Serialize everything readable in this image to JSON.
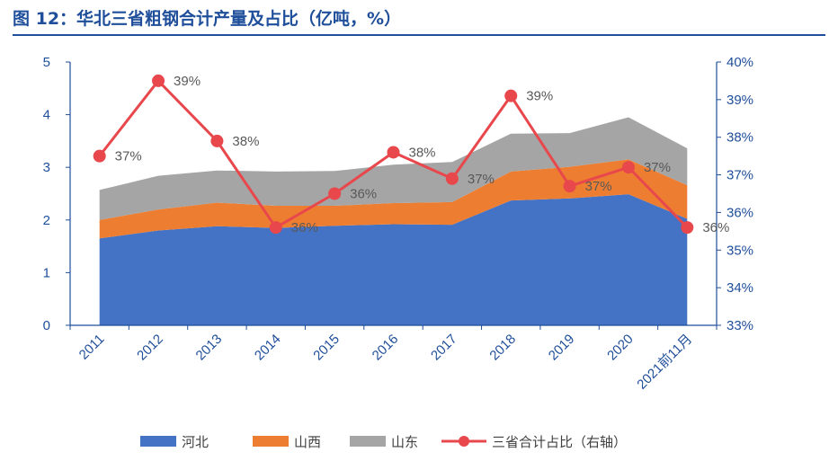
{
  "title": "图 12：华北三省粗钢合计产量及占比（亿吨，%）",
  "chart_data": {
    "type": "area",
    "title": "图 12：华北三省粗钢合计产量及占比（亿吨，%）",
    "categories": [
      "2011",
      "2012",
      "2013",
      "2014",
      "2015",
      "2016",
      "2017",
      "2018",
      "2019",
      "2020",
      "2021前11月"
    ],
    "stacked": true,
    "series": [
      {
        "name": "河北",
        "type": "area",
        "axis": "left",
        "color": "#4472c4",
        "values": [
          1.65,
          1.8,
          1.88,
          1.85,
          1.89,
          1.92,
          1.91,
          2.37,
          2.41,
          2.49,
          2.02
        ]
      },
      {
        "name": "山西",
        "type": "area",
        "axis": "left",
        "color": "#ed7d31",
        "values": [
          0.35,
          0.4,
          0.45,
          0.42,
          0.38,
          0.4,
          0.43,
          0.55,
          0.6,
          0.66,
          0.64
        ]
      },
      {
        "name": "山东",
        "type": "area",
        "axis": "left",
        "color": "#a5a5a5",
        "values": [
          0.57,
          0.64,
          0.61,
          0.65,
          0.66,
          0.73,
          0.76,
          0.72,
          0.64,
          0.8,
          0.7
        ]
      },
      {
        "name": "三省合计占比（右轴）",
        "type": "line",
        "axis": "right",
        "color": "#e8474c",
        "values": [
          37.5,
          39.5,
          37.9,
          35.6,
          36.5,
          37.6,
          36.9,
          39.1,
          36.7,
          37.2,
          35.6
        ],
        "labels": [
          "37%",
          "39%",
          "38%",
          "36%",
          "36%",
          "38%",
          "37%",
          "39%",
          "37%",
          "37%",
          "36%"
        ]
      }
    ],
    "y_left": {
      "ylim": [
        0,
        5
      ],
      "ticks": [
        "0",
        "1",
        "2",
        "3",
        "4",
        "5"
      ]
    },
    "y_right": {
      "ylim": [
        33,
        40
      ],
      "ticks": [
        "33%",
        "34%",
        "35%",
        "36%",
        "37%",
        "38%",
        "39%",
        "40%"
      ]
    },
    "grid": false,
    "legend_position": "bottom"
  }
}
